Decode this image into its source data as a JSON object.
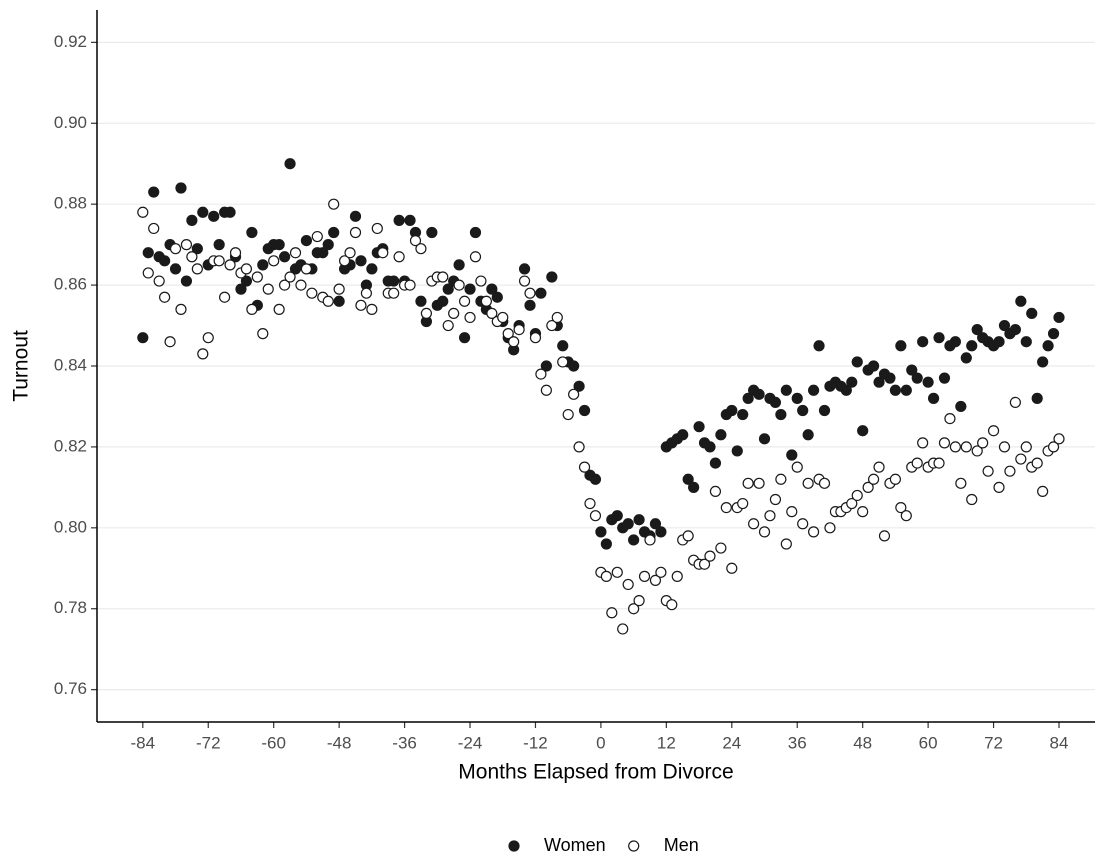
{
  "chart_data": {
    "type": "scatter",
    "x_label": "Months Elapsed from Divorce",
    "y_label": "Turnout",
    "x": [
      -84,
      -83,
      -82,
      -81,
      -80,
      -79,
      -78,
      -77,
      -76,
      -75,
      -74,
      -73,
      -72,
      -71,
      -70,
      -69,
      -68,
      -67,
      -66,
      -65,
      -64,
      -63,
      -62,
      -61,
      -60,
      -59,
      -58,
      -57,
      -56,
      -55,
      -54,
      -53,
      -52,
      -51,
      -50,
      -49,
      -48,
      -47,
      -46,
      -45,
      -44,
      -43,
      -42,
      -41,
      -40,
      -39,
      -38,
      -37,
      -36,
      -35,
      -34,
      -33,
      -32,
      -31,
      -30,
      -29,
      -28,
      -27,
      -26,
      -25,
      -24,
      -23,
      -22,
      -21,
      -20,
      -19,
      -18,
      -17,
      -16,
      -15,
      -14,
      -13,
      -12,
      -11,
      -10,
      -9,
      -8,
      -7,
      -6,
      -5,
      -4,
      -3,
      -2,
      -1,
      0,
      1,
      2,
      3,
      4,
      5,
      6,
      7,
      8,
      9,
      10,
      11,
      12,
      13,
      14,
      15,
      16,
      17,
      18,
      19,
      20,
      21,
      22,
      23,
      24,
      25,
      26,
      27,
      28,
      29,
      30,
      31,
      32,
      33,
      34,
      35,
      36,
      37,
      38,
      39,
      40,
      41,
      42,
      43,
      44,
      45,
      46,
      47,
      48,
      49,
      50,
      51,
      52,
      53,
      54,
      55,
      56,
      57,
      58,
      59,
      60,
      61,
      62,
      63,
      64,
      65,
      66,
      67,
      68,
      69,
      70,
      71,
      72,
      73,
      74,
      75,
      76,
      77,
      78,
      79,
      80,
      81,
      82,
      83,
      84
    ],
    "series": [
      {
        "name": "Women",
        "color": "#1a1a1a",
        "filled": true,
        "values": [
          0.847,
          0.868,
          0.883,
          0.867,
          0.866,
          0.87,
          0.864,
          0.884,
          0.861,
          0.876,
          0.869,
          0.878,
          0.865,
          0.877,
          0.87,
          0.878,
          0.878,
          0.867,
          0.859,
          0.861,
          0.873,
          0.855,
          0.865,
          0.869,
          0.87,
          0.87,
          0.867,
          0.89,
          0.864,
          0.865,
          0.871,
          0.864,
          0.868,
          0.868,
          0.87,
          0.873,
          0.856,
          0.864,
          0.865,
          0.877,
          0.866,
          0.86,
          0.864,
          0.868,
          0.869,
          0.861,
          0.861,
          0.876,
          0.861,
          0.876,
          0.873,
          0.856,
          0.851,
          0.873,
          0.855,
          0.856,
          0.859,
          0.861,
          0.865,
          0.847,
          0.859,
          0.873,
          0.856,
          0.854,
          0.859,
          0.857,
          0.851,
          0.847,
          0.844,
          0.85,
          0.864,
          0.855,
          0.848,
          0.858,
          0.84,
          0.862,
          0.85,
          0.845,
          0.841,
          0.84,
          0.835,
          0.829,
          0.813,
          0.812,
          0.799,
          0.796,
          0.802,
          0.803,
          0.8,
          0.801,
          0.797,
          0.802,
          0.799,
          0.798,
          0.801,
          0.799,
          0.82,
          0.821,
          0.822,
          0.823,
          0.812,
          0.81,
          0.825,
          0.821,
          0.82,
          0.816,
          0.823,
          0.828,
          0.829,
          0.819,
          0.828,
          0.832,
          0.834,
          0.833,
          0.822,
          0.832,
          0.831,
          0.828,
          0.834,
          0.818,
          0.832,
          0.829,
          0.823,
          0.834,
          0.845,
          0.829,
          0.835,
          0.836,
          0.835,
          0.834,
          0.836,
          0.841,
          0.824,
          0.839,
          0.84,
          0.836,
          0.838,
          0.837,
          0.834,
          0.845,
          0.834,
          0.839,
          0.837,
          0.846,
          0.836,
          0.832,
          0.847,
          0.837,
          0.845,
          0.846,
          0.83,
          0.842,
          0.845,
          0.849,
          0.847,
          0.846,
          0.845,
          0.846,
          0.85,
          0.848,
          0.849,
          0.856,
          0.846,
          0.853,
          0.832,
          0.841,
          0.845,
          0.848,
          0.852
        ]
      },
      {
        "name": "Men",
        "color": "#1a1a1a",
        "filled": false,
        "values": [
          0.878,
          0.863,
          0.874,
          0.861,
          0.857,
          0.846,
          0.869,
          0.854,
          0.87,
          0.867,
          0.864,
          0.843,
          0.847,
          0.866,
          0.866,
          0.857,
          0.865,
          0.868,
          0.863,
          0.864,
          0.854,
          0.862,
          0.848,
          0.859,
          0.866,
          0.854,
          0.86,
          0.862,
          0.868,
          0.86,
          0.864,
          0.858,
          0.872,
          0.857,
          0.856,
          0.88,
          0.859,
          0.866,
          0.868,
          0.873,
          0.855,
          0.858,
          0.854,
          0.874,
          0.868,
          0.858,
          0.858,
          0.867,
          0.86,
          0.86,
          0.871,
          0.869,
          0.853,
          0.861,
          0.862,
          0.862,
          0.85,
          0.853,
          0.86,
          0.856,
          0.852,
          0.867,
          0.861,
          0.856,
          0.853,
          0.851,
          0.852,
          0.848,
          0.846,
          0.849,
          0.861,
          0.858,
          0.847,
          0.838,
          0.834,
          0.85,
          0.852,
          0.841,
          0.828,
          0.833,
          0.82,
          0.815,
          0.806,
          0.803,
          0.789,
          0.788,
          0.779,
          0.789,
          0.775,
          0.786,
          0.78,
          0.782,
          0.788,
          0.797,
          0.787,
          0.789,
          0.782,
          0.781,
          0.788,
          0.797,
          0.798,
          0.792,
          0.791,
          0.791,
          0.793,
          0.809,
          0.795,
          0.805,
          0.79,
          0.805,
          0.806,
          0.811,
          0.801,
          0.811,
          0.799,
          0.803,
          0.807,
          0.812,
          0.796,
          0.804,
          0.815,
          0.801,
          0.811,
          0.799,
          0.812,
          0.811,
          0.8,
          0.804,
          0.804,
          0.805,
          0.806,
          0.808,
          0.804,
          0.81,
          0.812,
          0.815,
          0.798,
          0.811,
          0.812,
          0.805,
          0.803,
          0.815,
          0.816,
          0.821,
          0.815,
          0.816,
          0.816,
          0.821,
          0.827,
          0.82,
          0.811,
          0.82,
          0.807,
          0.819,
          0.821,
          0.814,
          0.824,
          0.81,
          0.82,
          0.814,
          0.831,
          0.817,
          0.82,
          0.815,
          0.816,
          0.809,
          0.819,
          0.82,
          0.822
        ]
      }
    ],
    "xlim": [
      -92.4,
      90.6
    ],
    "xticks": [
      -84,
      -72,
      -60,
      -48,
      -36,
      -24,
      -12,
      0,
      12,
      24,
      36,
      48,
      60,
      72,
      84
    ],
    "ylim": [
      0.752,
      0.928
    ],
    "yticks": [
      0.76,
      0.78,
      {
        "value": 0.8,
        "label": "0.80"
      },
      0.82,
      0.84,
      0.86,
      0.88,
      {
        "value": 0.9,
        "label": "0.90"
      },
      0.92
    ],
    "grid": "y",
    "legend_position": "bottom"
  }
}
